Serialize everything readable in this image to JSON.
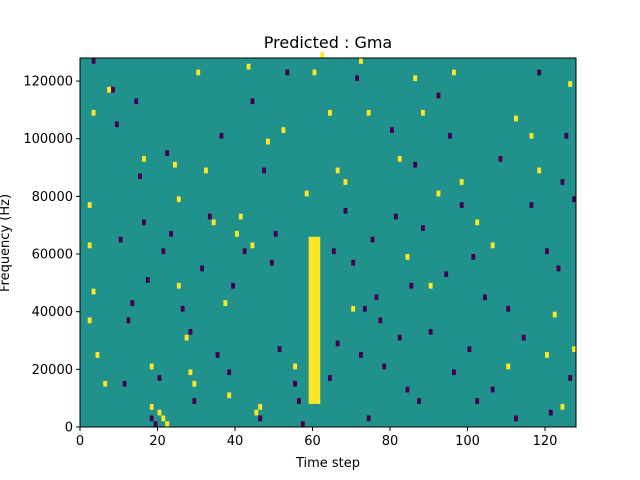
{
  "chart_data": {
    "type": "heatmap",
    "title": "Predicted : Gma",
    "xlabel": "Time step",
    "ylabel": "Frequency (Hz)",
    "xlim": [
      0,
      128
    ],
    "ylim": [
      0,
      128000
    ],
    "x_ticks": [
      0,
      20,
      40,
      60,
      80,
      100,
      120
    ],
    "x_tick_labels": [
      "0",
      "20",
      "40",
      "60",
      "80",
      "100",
      "120"
    ],
    "y_ticks": [
      0,
      20000,
      40000,
      60000,
      80000,
      100000,
      120000
    ],
    "y_tick_labels": [
      "0",
      "20000",
      "40000",
      "60000",
      "80000",
      "100000",
      "120000"
    ],
    "grid": false,
    "legend": "none",
    "n_time_steps": 128,
    "n_freq_bins": 64,
    "bin_height_hz": 2000,
    "colors": {
      "background": "#21918c",
      "low": "#440154",
      "high": "#fde725"
    },
    "value_scale": {
      "low": 0,
      "background": 0.5,
      "high": 1
    },
    "yellow_column": {
      "time_steps": [
        60,
        61
      ],
      "freq_range": [
        8000,
        66000
      ]
    },
    "yellow_column_extra": [
      {
        "time_step": 59,
        "freq_range": [
          8000,
          66000
        ]
      }
    ],
    "cells_high": [
      [
        2,
        76000
      ],
      [
        2,
        62000
      ],
      [
        3,
        46000
      ],
      [
        2,
        36000
      ],
      [
        4,
        24000
      ],
      [
        6,
        14000
      ],
      [
        7,
        116000
      ],
      [
        3,
        108000
      ],
      [
        16,
        92000
      ],
      [
        18,
        20000
      ],
      [
        18,
        6000
      ],
      [
        20,
        4000
      ],
      [
        21,
        2000
      ],
      [
        22,
        0
      ],
      [
        24,
        90000
      ],
      [
        25,
        78000
      ],
      [
        25,
        48000
      ],
      [
        27,
        30000
      ],
      [
        28,
        18000
      ],
      [
        29,
        14000
      ],
      [
        30,
        122000
      ],
      [
        32,
        88000
      ],
      [
        34,
        70000
      ],
      [
        37,
        42000
      ],
      [
        38,
        10000
      ],
      [
        40,
        66000
      ],
      [
        41,
        72000
      ],
      [
        43,
        124000
      ],
      [
        44,
        62000
      ],
      [
        45,
        4000
      ],
      [
        46,
        6000
      ],
      [
        48,
        98000
      ],
      [
        52,
        102000
      ],
      [
        55,
        20000
      ],
      [
        58,
        80000
      ],
      [
        60,
        122000
      ],
      [
        62,
        128000
      ],
      [
        64,
        108000
      ],
      [
        66,
        88000
      ],
      [
        68,
        84000
      ],
      [
        70,
        40000
      ],
      [
        72,
        126000
      ],
      [
        74,
        108000
      ],
      [
        82,
        92000
      ],
      [
        84,
        58000
      ],
      [
        86,
        120000
      ],
      [
        88,
        108000
      ],
      [
        90,
        48000
      ],
      [
        92,
        80000
      ],
      [
        96,
        122000
      ],
      [
        98,
        84000
      ],
      [
        102,
        70000
      ],
      [
        106,
        62000
      ],
      [
        110,
        20000
      ],
      [
        112,
        106000
      ],
      [
        116,
        100000
      ],
      [
        118,
        88000
      ],
      [
        120,
        24000
      ],
      [
        122,
        38000
      ],
      [
        124,
        6000
      ],
      [
        126,
        118000
      ],
      [
        127,
        26000
      ]
    ],
    "cells_low": [
      [
        3,
        126000
      ],
      [
        8,
        116000
      ],
      [
        9,
        104000
      ],
      [
        10,
        64000
      ],
      [
        11,
        14000
      ],
      [
        12,
        36000
      ],
      [
        13,
        42000
      ],
      [
        14,
        112000
      ],
      [
        15,
        86000
      ],
      [
        16,
        70000
      ],
      [
        17,
        50000
      ],
      [
        18,
        2000
      ],
      [
        19,
        0
      ],
      [
        20,
        16000
      ],
      [
        21,
        60000
      ],
      [
        22,
        94000
      ],
      [
        23,
        66000
      ],
      [
        26,
        40000
      ],
      [
        28,
        32000
      ],
      [
        29,
        8000
      ],
      [
        31,
        54000
      ],
      [
        33,
        72000
      ],
      [
        35,
        24000
      ],
      [
        36,
        100000
      ],
      [
        38,
        18000
      ],
      [
        39,
        48000
      ],
      [
        42,
        60000
      ],
      [
        44,
        112000
      ],
      [
        46,
        2000
      ],
      [
        47,
        88000
      ],
      [
        49,
        56000
      ],
      [
        50,
        66000
      ],
      [
        51,
        26000
      ],
      [
        53,
        122000
      ],
      [
        55,
        14000
      ],
      [
        56,
        8000
      ],
      [
        57,
        0
      ],
      [
        59,
        22000
      ],
      [
        64,
        16000
      ],
      [
        65,
        60000
      ],
      [
        66,
        28000
      ],
      [
        68,
        74000
      ],
      [
        70,
        56000
      ],
      [
        71,
        120000
      ],
      [
        72,
        24000
      ],
      [
        73,
        40000
      ],
      [
        74,
        2000
      ],
      [
        75,
        64000
      ],
      [
        76,
        44000
      ],
      [
        77,
        36000
      ],
      [
        78,
        20000
      ],
      [
        80,
        102000
      ],
      [
        81,
        72000
      ],
      [
        82,
        30000
      ],
      [
        84,
        12000
      ],
      [
        85,
        48000
      ],
      [
        86,
        90000
      ],
      [
        87,
        8000
      ],
      [
        88,
        68000
      ],
      [
        90,
        32000
      ],
      [
        92,
        114000
      ],
      [
        94,
        52000
      ],
      [
        95,
        100000
      ],
      [
        96,
        18000
      ],
      [
        98,
        76000
      ],
      [
        100,
        26000
      ],
      [
        101,
        58000
      ],
      [
        102,
        8000
      ],
      [
        104,
        44000
      ],
      [
        106,
        12000
      ],
      [
        108,
        92000
      ],
      [
        110,
        40000
      ],
      [
        112,
        2000
      ],
      [
        114,
        30000
      ],
      [
        116,
        76000
      ],
      [
        118,
        122000
      ],
      [
        120,
        60000
      ],
      [
        121,
        4000
      ],
      [
        123,
        54000
      ],
      [
        124,
        84000
      ],
      [
        125,
        100000
      ],
      [
        126,
        16000
      ],
      [
        127,
        78000
      ]
    ]
  }
}
